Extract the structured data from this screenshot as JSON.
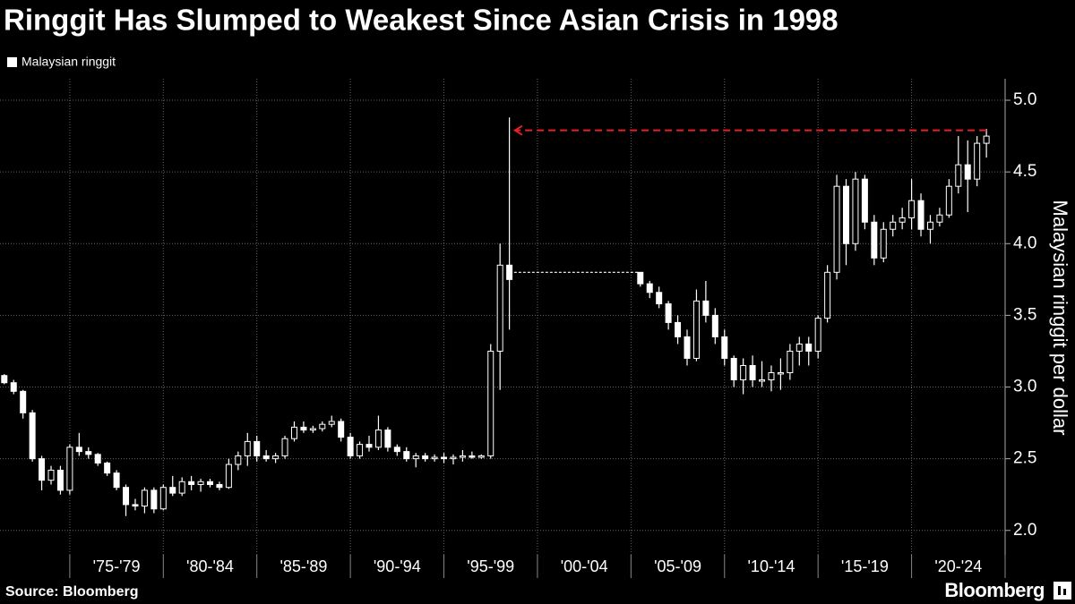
{
  "chart_data": {
    "type": "candlestick",
    "title": "Ringgit Has Slumped to Weakest Since Asian Crisis in 1998",
    "legend_label": "Malaysian ringgit",
    "y_axis_label": "Malaysian ringgit per dollar",
    "source": "Source: Bloomberg",
    "brand": "Bloomberg",
    "color": "#ffffff",
    "xlim": [
      1971.27,
      2025.0
    ],
    "ylim": [
      1.83,
      5.15
    ],
    "yticks": [
      {
        "value": 2.0,
        "label": "2.0"
      },
      2.5,
      {
        "value": 3.0,
        "label": "3.0"
      },
      3.5,
      {
        "value": 4.0,
        "label": "4.0"
      },
      4.5,
      {
        "value": 5.0,
        "label": "5.0"
      }
    ],
    "xticks": [
      {
        "value": 1977.5,
        "label": "'75-'79"
      },
      {
        "value": 1982.5,
        "label": "'80-'84"
      },
      {
        "value": 1987.5,
        "label": "'85-'89"
      },
      {
        "value": 1992.5,
        "label": "'90-'94"
      },
      {
        "value": 1997.5,
        "label": "'95-'99"
      },
      {
        "value": 2002.5,
        "label": "'00-'04"
      },
      {
        "value": 2007.5,
        "label": "'05-'09"
      },
      {
        "value": 2012.5,
        "label": "'10-'14"
      },
      {
        "value": 2017.5,
        "label": "'15-'19"
      },
      {
        "value": 2022.5,
        "label": "'20-'24"
      }
    ],
    "x_dividers": [
      1975,
      1980,
      1985,
      1990,
      1995,
      2000,
      2005,
      2010,
      2015,
      2020,
      2025
    ],
    "grid": true,
    "peg_line": {
      "value": 3.8,
      "x": [
        1998.75,
        2005.4
      ],
      "color": "#ffffff"
    },
    "annotation_arrow": {
      "value": 4.79,
      "x": [
        2024.0,
        1998.8
      ],
      "color": "#e8202a"
    },
    "x": [
      1971.5,
      1972.0,
      1972.5,
      1973.0,
      1973.5,
      1974.0,
      1974.5,
      1975.0,
      1975.5,
      1976.0,
      1976.5,
      1977.0,
      1977.5,
      1978.0,
      1978.5,
      1979.0,
      1979.5,
      1980.0,
      1980.5,
      1981.0,
      1981.5,
      1982.0,
      1982.5,
      1983.0,
      1983.5,
      1984.0,
      1984.5,
      1985.0,
      1985.5,
      1986.0,
      1986.5,
      1987.0,
      1987.5,
      1988.0,
      1988.5,
      1989.0,
      1989.5,
      1990.0,
      1990.5,
      1991.0,
      1991.5,
      1992.0,
      1992.5,
      1993.0,
      1993.5,
      1994.0,
      1994.5,
      1995.0,
      1995.5,
      1996.0,
      1996.5,
      1997.0,
      1997.5,
      1998.0,
      1998.5,
      2005.5,
      2006.0,
      2006.5,
      2007.0,
      2007.5,
      2008.0,
      2008.5,
      2009.0,
      2009.5,
      2010.0,
      2010.5,
      2011.0,
      2011.5,
      2012.0,
      2012.5,
      2013.0,
      2013.5,
      2014.0,
      2014.5,
      2015.0,
      2015.5,
      2016.0,
      2016.5,
      2017.0,
      2017.5,
      2018.0,
      2018.5,
      2019.0,
      2019.5,
      2020.0,
      2020.5,
      2021.0,
      2021.5,
      2022.0,
      2022.5,
      2023.0,
      2023.5,
      2024.0
    ],
    "open": [
      3.08,
      3.03,
      2.97,
      2.82,
      2.5,
      2.35,
      2.42,
      2.28,
      2.58,
      2.55,
      2.53,
      2.47,
      2.4,
      2.3,
      2.18,
      2.17,
      2.28,
      2.15,
      2.3,
      2.26,
      2.34,
      2.32,
      2.34,
      2.32,
      2.3,
      2.46,
      2.52,
      2.62,
      2.52,
      2.5,
      2.52,
      2.64,
      2.72,
      2.7,
      2.71,
      2.74,
      2.76,
      2.65,
      2.52,
      2.6,
      2.58,
      2.7,
      2.58,
      2.55,
      2.5,
      2.52,
      2.5,
      2.51,
      2.5,
      2.51,
      2.52,
      2.51,
      2.52,
      3.25,
      3.85,
      3.8,
      3.72,
      3.66,
      3.58,
      3.45,
      3.35,
      3.2,
      3.6,
      3.5,
      3.35,
      3.2,
      3.05,
      3.15,
      3.05,
      3.05,
      3.1,
      3.1,
      3.25,
      3.3,
      3.25,
      3.48,
      3.8,
      4.4,
      4.0,
      4.45,
      4.15,
      3.9,
      4.1,
      4.15,
      4.18,
      4.3,
      4.1,
      4.15,
      4.2,
      4.4,
      4.55,
      4.45,
      4.7
    ],
    "high": [
      3.09,
      3.05,
      2.98,
      2.84,
      2.52,
      2.45,
      2.45,
      2.6,
      2.68,
      2.58,
      2.54,
      2.48,
      2.42,
      2.32,
      2.22,
      2.3,
      2.3,
      2.32,
      2.38,
      2.37,
      2.38,
      2.36,
      2.36,
      2.34,
      2.5,
      2.55,
      2.68,
      2.66,
      2.56,
      2.54,
      2.66,
      2.76,
      2.76,
      2.73,
      2.76,
      2.8,
      2.78,
      2.68,
      2.62,
      2.66,
      2.8,
      2.72,
      2.6,
      2.58,
      2.54,
      2.54,
      2.53,
      2.54,
      2.53,
      2.56,
      2.55,
      2.53,
      3.3,
      4.0,
      4.88,
      3.8,
      3.74,
      3.7,
      3.6,
      3.5,
      3.4,
      3.68,
      3.74,
      3.55,
      3.4,
      3.22,
      3.2,
      3.22,
      3.18,
      3.15,
      3.2,
      3.3,
      3.35,
      3.35,
      3.5,
      3.85,
      4.48,
      4.45,
      4.5,
      4.48,
      4.2,
      4.15,
      4.2,
      4.25,
      4.45,
      4.35,
      4.2,
      4.25,
      4.45,
      4.75,
      4.72,
      4.75,
      4.8
    ],
    "low": [
      3.02,
      2.95,
      2.78,
      2.48,
      2.28,
      2.32,
      2.25,
      2.25,
      2.52,
      2.5,
      2.45,
      2.38,
      2.28,
      2.1,
      2.14,
      2.12,
      2.12,
      2.14,
      2.24,
      2.24,
      2.28,
      2.27,
      2.3,
      2.28,
      2.29,
      2.42,
      2.45,
      2.48,
      2.48,
      2.47,
      2.5,
      2.62,
      2.68,
      2.68,
      2.69,
      2.72,
      2.62,
      2.5,
      2.5,
      2.55,
      2.56,
      2.55,
      2.52,
      2.48,
      2.44,
      2.48,
      2.48,
      2.47,
      2.46,
      2.48,
      2.5,
      2.5,
      2.5,
      2.98,
      3.4,
      3.7,
      3.62,
      3.55,
      3.4,
      3.3,
      3.15,
      3.18,
      3.45,
      3.3,
      3.15,
      3.0,
      2.95,
      3.0,
      3.0,
      2.97,
      2.98,
      3.05,
      3.15,
      3.15,
      3.2,
      3.45,
      3.75,
      3.85,
      3.95,
      4.1,
      3.85,
      3.87,
      4.05,
      4.1,
      4.1,
      4.05,
      4.0,
      4.12,
      4.18,
      4.35,
      4.22,
      4.4,
      4.6
    ],
    "close": [
      3.03,
      2.97,
      2.82,
      2.5,
      2.35,
      2.42,
      2.28,
      2.58,
      2.55,
      2.53,
      2.47,
      2.4,
      2.3,
      2.18,
      2.17,
      2.28,
      2.15,
      2.3,
      2.26,
      2.34,
      2.32,
      2.34,
      2.32,
      2.3,
      2.46,
      2.52,
      2.62,
      2.52,
      2.5,
      2.52,
      2.64,
      2.72,
      2.7,
      2.71,
      2.74,
      2.76,
      2.65,
      2.52,
      2.6,
      2.58,
      2.7,
      2.58,
      2.55,
      2.5,
      2.52,
      2.5,
      2.51,
      2.5,
      2.51,
      2.52,
      2.51,
      2.52,
      3.25,
      3.85,
      3.75,
      3.72,
      3.66,
      3.58,
      3.45,
      3.35,
      3.2,
      3.6,
      3.5,
      3.35,
      3.2,
      3.05,
      3.15,
      3.05,
      3.05,
      3.1,
      3.1,
      3.25,
      3.3,
      3.25,
      3.48,
      3.8,
      4.4,
      4.0,
      4.45,
      4.15,
      3.9,
      4.1,
      4.15,
      4.18,
      4.3,
      4.1,
      4.15,
      4.2,
      4.4,
      4.55,
      4.45,
      4.7,
      4.75
    ]
  }
}
